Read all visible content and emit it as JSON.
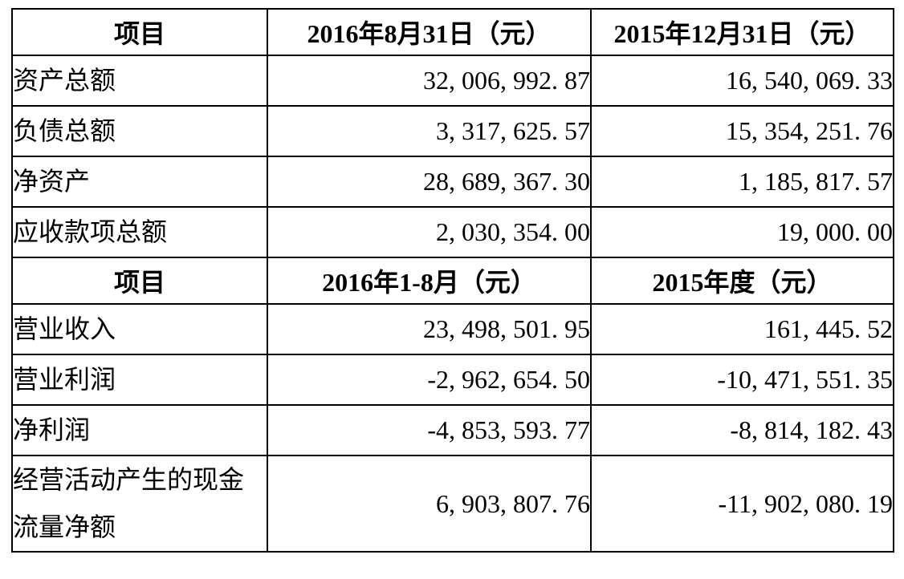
{
  "table": {
    "sections": [
      {
        "header": {
          "item": "项目",
          "period_a": "2016年8月31日（元）",
          "period_b": "2015年12月31日（元）"
        },
        "rows": [
          {
            "label": "资产总额",
            "period_a": "32,006,992.87",
            "period_b": "16,540,069.33"
          },
          {
            "label": "负债总额",
            "period_a": "3,317,625.57",
            "period_b": "15,354,251.76"
          },
          {
            "label": "净资产",
            "period_a": "28,689,367.30",
            "period_b": "1,185,817.57"
          },
          {
            "label": "应收款项总额",
            "period_a": "2,030,354.00",
            "period_b": "19,000.00"
          }
        ]
      },
      {
        "header": {
          "item": "项目",
          "period_a": "2016年1-8月（元）",
          "period_b": "2015年度（元）"
        },
        "rows": [
          {
            "label": "营业收入",
            "period_a": "23,498,501.95",
            "period_b": "161,445.52"
          },
          {
            "label": "营业利润",
            "period_a": "-2,962,654.50",
            "period_b": "-10,471,551.35"
          },
          {
            "label": "净利润",
            "period_a": "-4,853,593.77",
            "period_b": "-8,814,182.43"
          },
          {
            "label": "经营活动产生的现金流量净额",
            "period_a": "6,903,807.76",
            "period_b": "-11,902,080.19"
          }
        ]
      }
    ]
  },
  "colors": {
    "text": "#000000",
    "border": "#000000",
    "background": "#ffffff"
  }
}
